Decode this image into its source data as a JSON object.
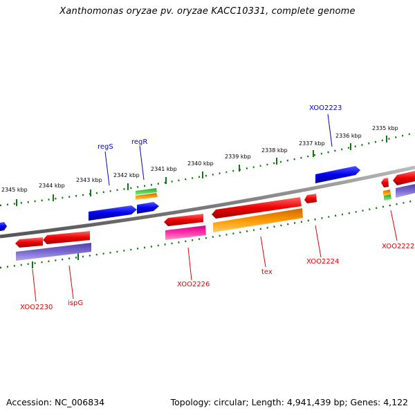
{
  "title": "Xanthomonas oryzae pv. oryzae KACC10331, complete genome",
  "footer": {
    "accession": "Accession: NC_006834",
    "topology": "Topology: circular; Length: 4,941,439 bp; Genes: 4,122"
  },
  "ruler": {
    "ticks": [
      "2345 kbp",
      "2344 kbp",
      "2343 kbp",
      "2342 kbp",
      "2341 kbp",
      "2340 kbp",
      "2339 kbp",
      "2338 kbp",
      "2337 kbp",
      "2336 kbp",
      "2335 kbp"
    ]
  },
  "genes": {
    "regS": "regS",
    "regR": "regR",
    "xoo2223": "XOO2223",
    "xoo2230": "XOO2230",
    "ispG": "ispG",
    "xoo2226": "XOO2226",
    "tex": "tex",
    "xoo2224": "XOO2224",
    "xoo2222": "XOO2222"
  },
  "colors": {
    "backbone": "#808080",
    "forward_feature": "#0000ee",
    "reverse_feature": "#ee0000",
    "cds_purple": "#7060c8",
    "cds_orange": "#ff9900",
    "cds_magenta": "#ff33aa",
    "cds_green": "#33cc33",
    "tick_green": "#117711"
  }
}
